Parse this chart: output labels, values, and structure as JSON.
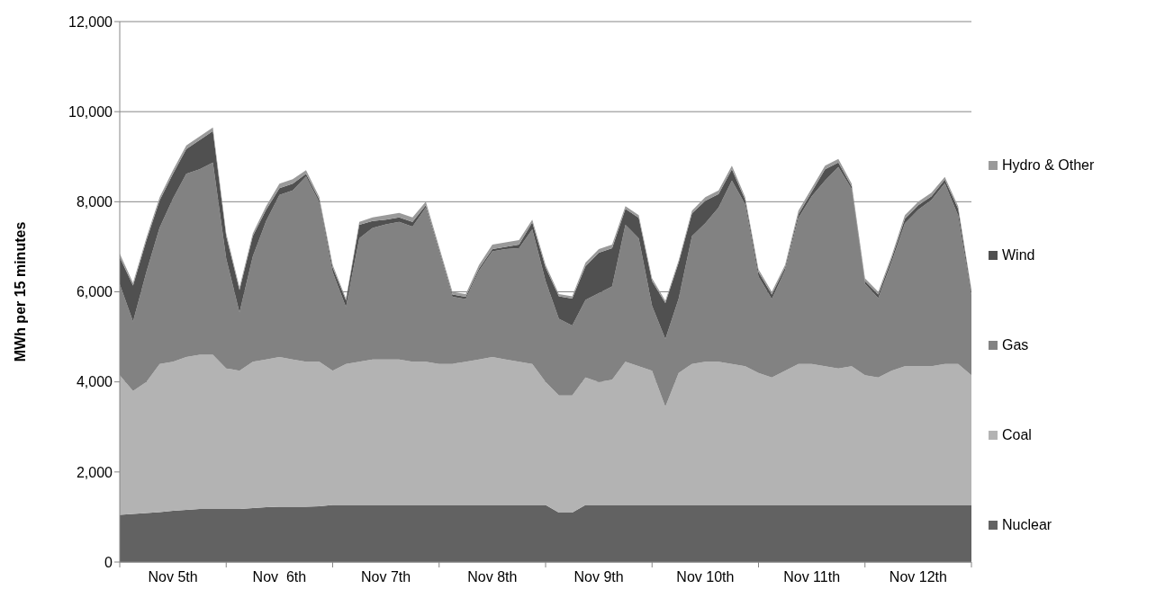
{
  "chart_data": {
    "type": "area",
    "stacked": true,
    "ylabel": "MWh per 15 minutes",
    "grid": "y",
    "legend": "right",
    "categories": [
      null,
      null,
      null,
      null,
      "Nov 5th",
      null,
      null,
      null,
      null,
      null,
      null,
      null,
      "Nov  6th",
      null,
      null,
      null,
      null,
      null,
      null,
      null,
      "Nov 7th",
      null,
      null,
      null,
      null,
      null,
      null,
      null,
      "Nov 8th",
      null,
      null,
      null,
      null,
      null,
      null,
      null,
      "Nov 9th",
      null,
      null,
      null,
      null,
      null,
      null,
      null,
      "Nov 10th",
      null,
      null,
      null,
      null,
      null,
      null,
      null,
      "Nov 11th",
      null,
      null,
      null,
      null,
      null,
      null,
      null,
      "Nov 12th",
      null,
      null,
      null,
      null
    ],
    "ylim": [
      0,
      12000
    ],
    "yticks": [
      {
        "value": 0,
        "label": "0"
      },
      {
        "value": 2000,
        "label": "2,000"
      },
      {
        "value": 4000,
        "label": "4,000"
      },
      {
        "value": 6000,
        "label": "6,000"
      },
      {
        "value": 8000,
        "label": "8,000"
      },
      {
        "value": 10000,
        "label": "10,000"
      },
      {
        "value": 12000,
        "label": "12,000"
      }
    ],
    "series": [
      {
        "name": "Nuclear",
        "color": "#626262",
        "values": [
          1050,
          1070,
          1090,
          1110,
          1140,
          1160,
          1180,
          1180,
          1180,
          1180,
          1200,
          1220,
          1230,
          1230,
          1230,
          1240,
          1270,
          1270,
          1270,
          1270,
          1270,
          1270,
          1270,
          1270,
          1270,
          1270,
          1270,
          1270,
          1270,
          1270,
          1270,
          1270,
          1270,
          1100,
          1100,
          1270,
          1270,
          1270,
          1270,
          1270,
          1270,
          1270,
          1270,
          1270,
          1270,
          1270,
          1270,
          1270,
          1270,
          1270,
          1270,
          1270,
          1270,
          1270,
          1270,
          1270,
          1270,
          1270,
          1270,
          1270,
          1270,
          1270,
          1270,
          1270,
          1270
        ]
      },
      {
        "name": "Coal",
        "color": "#b3b3b3",
        "values": [
          3100,
          2730,
          2910,
          3290,
          3310,
          3390,
          3420,
          3420,
          3120,
          3070,
          3250,
          3280,
          3320,
          3270,
          3220,
          3210,
          2980,
          3130,
          3180,
          3230,
          3230,
          3230,
          3180,
          3180,
          3130,
          3130,
          3180,
          3230,
          3280,
          3230,
          3180,
          3130,
          2730,
          2600,
          2600,
          2830,
          2730,
          2780,
          3180,
          3080,
          2980,
          2180,
          2930,
          3130,
          3180,
          3180,
          3130,
          3080,
          2930,
          2830,
          2980,
          3130,
          3130,
          3080,
          3030,
          3080,
          2880,
          2830,
          2980,
          3080,
          3080,
          3080,
          3130,
          3130,
          2880
        ]
      },
      {
        "name": "Gas",
        "color": "#828282",
        "values": [
          2020,
          1540,
          2440,
          3030,
          3620,
          4070,
          4120,
          4270,
          2440,
          1290,
          2340,
          3070,
          3600,
          3750,
          4110,
          3530,
          2190,
          1260,
          2740,
          2920,
          3000,
          3050,
          3000,
          3420,
          2490,
          1490,
          1390,
          1970,
          2350,
          2450,
          2520,
          2990,
          2240,
          1700,
          1550,
          1720,
          1970,
          2070,
          3040,
          2840,
          1440,
          1500,
          1650,
          2840,
          3070,
          3420,
          4070,
          3590,
          2140,
          1740,
          2230,
          3240,
          3720,
          4120,
          4470,
          3930,
          2030,
          1760,
          2410,
          3170,
          3470,
          3690,
          4010,
          3290,
          1780
        ]
      },
      {
        "name": "Wind",
        "color": "#505050",
        "values": [
          600,
          800,
          700,
          600,
          550,
          550,
          650,
          700,
          500,
          500,
          450,
          250,
          150,
          150,
          60,
          60,
          100,
          150,
          300,
          150,
          100,
          100,
          100,
          50,
          50,
          50,
          50,
          50,
          50,
          50,
          80,
          150,
          300,
          500,
          600,
          750,
          900,
          850,
          350,
          450,
          550,
          800,
          800,
          500,
          500,
          300,
          250,
          100,
          100,
          100,
          60,
          80,
          100,
          250,
          100,
          60,
          60,
          80,
          80,
          100,
          100,
          80,
          80,
          150,
          80
        ]
      },
      {
        "name": "Hydro & Other",
        "color": "#9a9a9a",
        "values": [
          80,
          60,
          60,
          70,
          80,
          80,
          80,
          80,
          60,
          60,
          60,
          80,
          100,
          100,
          80,
          60,
          60,
          40,
          60,
          80,
          100,
          100,
          100,
          80,
          60,
          60,
          60,
          80,
          100,
          100,
          100,
          60,
          60,
          50,
          50,
          80,
          80,
          80,
          60,
          60,
          60,
          50,
          50,
          60,
          80,
          80,
          80,
          60,
          60,
          60,
          60,
          80,
          80,
          80,
          80,
          60,
          60,
          60,
          60,
          80,
          80,
          80,
          60,
          60,
          40
        ]
      }
    ]
  }
}
